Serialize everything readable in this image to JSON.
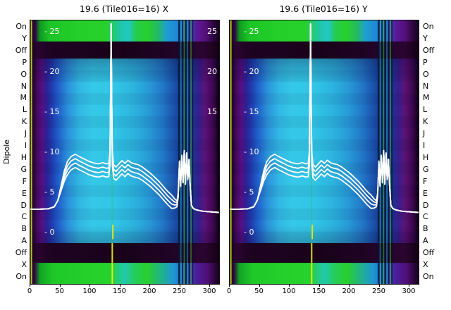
{
  "figure": {
    "dipole_label": "Dipole",
    "titles": [
      "19.6 (Tile016=16) X",
      "19.6 (Tile016=16) Y"
    ],
    "row_labels": [
      "On",
      "Y",
      "Off",
      "P",
      "O",
      "N",
      "M",
      "L",
      "K",
      "J",
      "I",
      "H",
      "G",
      "F",
      "E",
      "D",
      "C",
      "B",
      "A",
      "Off",
      "X",
      "On"
    ],
    "x_tick_labels": [
      "0",
      "50",
      "100",
      "150",
      "200",
      "250",
      "300"
    ],
    "y_tick_labels_left": [
      "- 25",
      "- 20",
      "- 15",
      "- 10",
      "- 5",
      "- 0"
    ],
    "y_tick_labels_right": [
      "25",
      "20",
      "15"
    ]
  },
  "chart_data": {
    "type": "heatmap",
    "panels": [
      "19.6 (Tile016=16) X",
      "19.6 (Tile016=16) Y"
    ],
    "x_axis": {
      "range": [
        0,
        315
      ],
      "ticks": [
        0,
        50,
        100,
        150,
        200,
        250,
        300
      ]
    },
    "y_axis": {
      "label": "Dipole",
      "rows": [
        "On",
        "Y",
        "Off",
        "P",
        "O",
        "N",
        "M",
        "L",
        "K",
        "J",
        "I",
        "H",
        "G",
        "F",
        "E",
        "D",
        "C",
        "B",
        "A",
        "Off",
        "X",
        "On"
      ]
    },
    "power_ticks": [
      25,
      20,
      15,
      10,
      5,
      0
    ],
    "line": {
      "name": "white-bandpass-traces",
      "color": "#ffffff",
      "trace_offsets": [
        0,
        -0.55,
        -1.1,
        0.55
      ],
      "x": [
        0,
        15,
        30,
        40,
        46,
        52,
        57,
        62,
        68,
        75,
        82,
        90,
        98,
        106,
        114,
        121,
        127,
        131,
        133,
        134,
        135,
        136,
        137,
        139,
        143,
        148,
        153,
        158,
        163,
        168,
        174,
        180,
        187,
        194,
        201,
        208,
        215,
        222,
        229,
        236,
        241,
        245,
        247,
        249,
        251,
        253,
        255,
        257,
        259,
        261,
        263,
        265,
        267,
        269,
        272,
        276,
        281,
        288,
        296,
        305,
        315
      ],
      "v": [
        2.9,
        2.9,
        2.95,
        3.2,
        4.0,
        5.8,
        7.3,
        8.3,
        8.9,
        9.2,
        8.9,
        8.6,
        8.3,
        8.1,
        8.0,
        8.15,
        8.0,
        8.05,
        9.5,
        17,
        26,
        16,
        9.5,
        7.9,
        7.6,
        8.0,
        8.4,
        8.05,
        8.45,
        8.15,
        8.0,
        7.9,
        7.6,
        7.2,
        6.8,
        6.3,
        5.8,
        5.2,
        4.6,
        4.1,
        3.8,
        3.7,
        4.8,
        8.8,
        5.8,
        9.6,
        6.2,
        10.2,
        6.0,
        9.9,
        6.6,
        9.1,
        5.6,
        3.4,
        3.0,
        2.85,
        2.75,
        2.65,
        2.6,
        2.55,
        2.5
      ]
    },
    "bands": [
      {
        "y0": 0.0,
        "y1": 0.08,
        "stops": [
          [
            0,
            "#1c0322"
          ],
          [
            0.025,
            "#2e0640"
          ],
          [
            0.05,
            "#0f9a22"
          ],
          [
            0.1,
            "#1cc426"
          ],
          [
            0.25,
            "#24cf28"
          ],
          [
            0.4,
            "#28d02c"
          ],
          [
            0.47,
            "#1fc7a0"
          ],
          [
            0.52,
            "#22c9c4"
          ],
          [
            0.56,
            "#25cc50"
          ],
          [
            0.62,
            "#28d02c"
          ],
          [
            0.68,
            "#22b86a"
          ],
          [
            0.72,
            "#1e9fd0"
          ],
          [
            0.78,
            "#1f86d8"
          ],
          [
            0.84,
            "#2a58c0"
          ],
          [
            0.88,
            "#5a1a9a"
          ],
          [
            0.93,
            "#55107a"
          ],
          [
            0.97,
            "#2e0640"
          ],
          [
            1,
            "#180320"
          ]
        ]
      },
      {
        "y0": 0.08,
        "y1": 0.145,
        "stops": [
          [
            0,
            "#120114"
          ],
          [
            0.03,
            "#2a0430"
          ],
          [
            0.1,
            "#1e0322"
          ],
          [
            0.5,
            "#190219"
          ],
          [
            0.8,
            "#22042a"
          ],
          [
            0.93,
            "#2a0530"
          ],
          [
            1,
            "#130114"
          ]
        ]
      },
      {
        "y0": 0.145,
        "y1": 0.845,
        "stops": [
          [
            0,
            "#0b020d"
          ],
          [
            0.012,
            "#250430"
          ],
          [
            0.035,
            "#470960"
          ],
          [
            0.06,
            "#551084"
          ],
          [
            0.085,
            "#2f2096"
          ],
          [
            0.115,
            "#1f3eb0"
          ],
          [
            0.15,
            "#2162cc"
          ],
          [
            0.2,
            "#2b93da"
          ],
          [
            0.26,
            "#31b8e4"
          ],
          [
            0.33,
            "#35c8e8"
          ],
          [
            0.45,
            "#31c5e6"
          ],
          [
            0.55,
            "#2cb2de"
          ],
          [
            0.63,
            "#2799d6"
          ],
          [
            0.7,
            "#2279c8"
          ],
          [
            0.76,
            "#1b54ae"
          ],
          [
            0.795,
            "#143e96"
          ],
          [
            0.86,
            "#1c3492"
          ],
          [
            0.895,
            "#381e8e"
          ],
          [
            0.925,
            "#591478"
          ],
          [
            0.955,
            "#4c0a60"
          ],
          [
            0.98,
            "#300640"
          ],
          [
            1,
            "#0e0210"
          ]
        ]
      },
      {
        "y0": 0.845,
        "y1": 0.92,
        "stops": [
          [
            0,
            "#120114"
          ],
          [
            0.03,
            "#2a0430"
          ],
          [
            0.1,
            "#1e0322"
          ],
          [
            0.5,
            "#190219"
          ],
          [
            0.8,
            "#22042a"
          ],
          [
            0.93,
            "#2a0530"
          ],
          [
            1,
            "#130114"
          ]
        ]
      },
      {
        "y0": 0.92,
        "y1": 1.0,
        "stops": [
          [
            0,
            "#1c0322"
          ],
          [
            0.02,
            "#2e0640"
          ],
          [
            0.05,
            "#12a424"
          ],
          [
            0.12,
            "#1ec828"
          ],
          [
            0.3,
            "#26d02a"
          ],
          [
            0.42,
            "#28d22c"
          ],
          [
            0.5,
            "#20c8b0"
          ],
          [
            0.55,
            "#24cc60"
          ],
          [
            0.62,
            "#28d02c"
          ],
          [
            0.7,
            "#20b090"
          ],
          [
            0.76,
            "#1e96d4"
          ],
          [
            0.82,
            "#2462c4"
          ],
          [
            0.88,
            "#4a1e9e"
          ],
          [
            0.94,
            "#500e74"
          ],
          [
            0.98,
            "#2a0538"
          ],
          [
            1,
            "#160320"
          ]
        ]
      }
    ],
    "main_region": {
      "y0": 0.145,
      "y1": 0.845,
      "rows": 16,
      "alt_alpha": 0.06
    },
    "v_lines": [
      {
        "x": 0.006,
        "w": 2,
        "c": "#c8da1e",
        "a": 0.9,
        "y0": 0,
        "y1": 1
      },
      {
        "x": 0.789,
        "w": 3,
        "c": "#06142f",
        "a": 0.8,
        "y0": 0,
        "y1": 1
      },
      {
        "x": 0.806,
        "w": 2,
        "c": "#06142f",
        "a": 0.75,
        "y0": 0,
        "y1": 1
      },
      {
        "x": 0.824,
        "w": 3,
        "c": "#06142f",
        "a": 0.8,
        "y0": 0,
        "y1": 1
      },
      {
        "x": 0.842,
        "w": 2,
        "c": "#06142f",
        "a": 0.75,
        "y0": 0,
        "y1": 1
      },
      {
        "x": 0.859,
        "w": 2,
        "c": "#06142f",
        "a": 0.65,
        "y0": 0,
        "y1": 1
      },
      {
        "x": 0.797,
        "w": 2,
        "c": "#2cc9e2",
        "a": 0.4,
        "y0": 0,
        "y1": 1
      },
      {
        "x": 0.832,
        "w": 2,
        "c": "#2cc9e2",
        "a": 0.38,
        "y0": 0,
        "y1": 1
      },
      {
        "x": 0.815,
        "w": 1.6,
        "c": "#38dc30",
        "a": 0.5,
        "y0": 0,
        "y1": 1
      },
      {
        "x": 0.851,
        "w": 1.6,
        "c": "#64dc20",
        "a": 0.45,
        "y0": 0,
        "y1": 1
      },
      {
        "x": 0.433,
        "w": 1,
        "c": "#2ac832",
        "a": 0.5,
        "y0": 0.43,
        "y1": 0.87
      },
      {
        "x": 0.437,
        "w": 2,
        "c": "#e6e61a",
        "a": 0.95,
        "y0": 0.775,
        "y1": 0.83
      },
      {
        "x": 0.434,
        "w": 2,
        "c": "#ecec14",
        "a": 0.92,
        "y0": 0.845,
        "y1": 1
      }
    ]
  }
}
